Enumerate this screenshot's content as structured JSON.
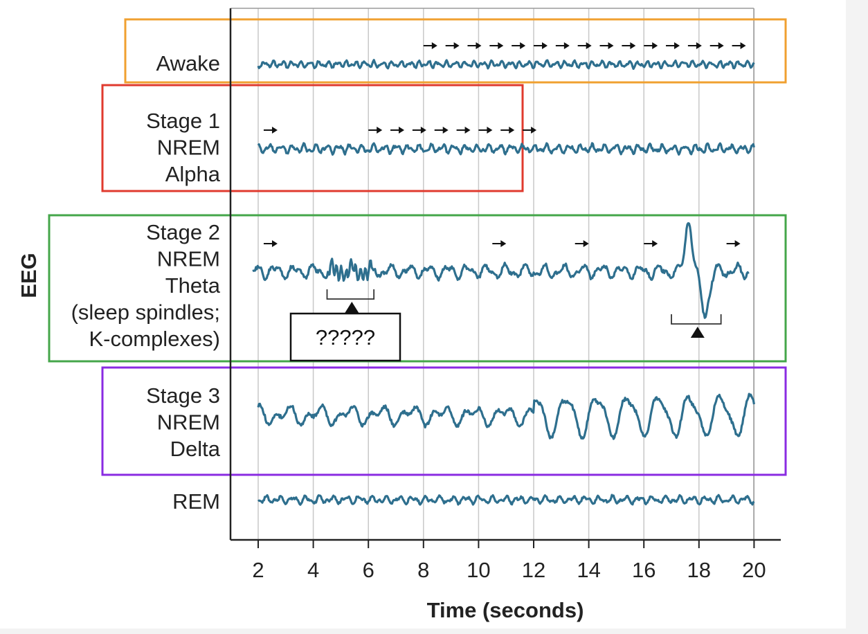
{
  "chart_data": {
    "type": "line",
    "xlabel": "Time (seconds)",
    "ylabel": "EEG",
    "xlim": [
      1,
      21
    ],
    "x_ticks": [
      "2",
      "4",
      "6",
      "8",
      "10",
      "12",
      "14",
      "16",
      "18",
      "20"
    ],
    "grid": true,
    "series": [
      {
        "name": "Awake",
        "label_lines": [
          "Awake"
        ],
        "pattern": "awake",
        "x_range": [
          2,
          20
        ],
        "box_color": "#f0a030",
        "arrows": [
          8.0,
          8.8,
          9.6,
          10.4,
          11.2,
          12.0,
          12.8,
          13.6,
          14.4,
          15.2,
          16.0,
          16.8,
          17.6,
          18.4,
          19.2
        ]
      },
      {
        "name": "Stage 1 NREM Alpha",
        "label_lines": [
          "Stage 1",
          "NREM",
          "Alpha"
        ],
        "pattern": "stage1",
        "x_range": [
          2,
          20
        ],
        "box_color": "#e03a2e",
        "arrows": [
          2.2,
          6.0,
          6.8,
          7.6,
          8.4,
          9.2,
          10.0,
          10.8,
          11.6
        ]
      },
      {
        "name": "Stage 2 NREM Theta (sleep spindles; K-complexes)",
        "label_lines": [
          "Stage 2",
          "NREM",
          "Theta",
          "(sleep spindles;",
          "K-complexes)"
        ],
        "pattern": "stage2",
        "x_range": [
          1.8,
          19.8
        ],
        "box_color": "#44a64a",
        "arrows": [
          2.2,
          10.5,
          13.5,
          16.0,
          19.0
        ],
        "markers": [
          {
            "from": 4.5,
            "to": 6.2,
            "at": 5.4
          },
          {
            "from": 17.0,
            "to": 18.8,
            "at": 17.95
          }
        ]
      },
      {
        "name": "Stage 3 NREM Delta",
        "label_lines": [
          "Stage 3",
          "NREM",
          "Delta"
        ],
        "pattern": "stage3",
        "x_range": [
          2,
          20
        ],
        "box_color": "#8a2be2"
      },
      {
        "name": "REM",
        "label_lines": [
          "REM"
        ],
        "pattern": "rem",
        "x_range": [
          2,
          20
        ],
        "box_color": null
      }
    ],
    "annotations": [
      {
        "text": "?????",
        "near": "Stage 2 spindle marker"
      }
    ],
    "colors": {
      "trace": "#2e6f8e",
      "grid": "#c8c8c8",
      "axis": "#222222"
    }
  }
}
